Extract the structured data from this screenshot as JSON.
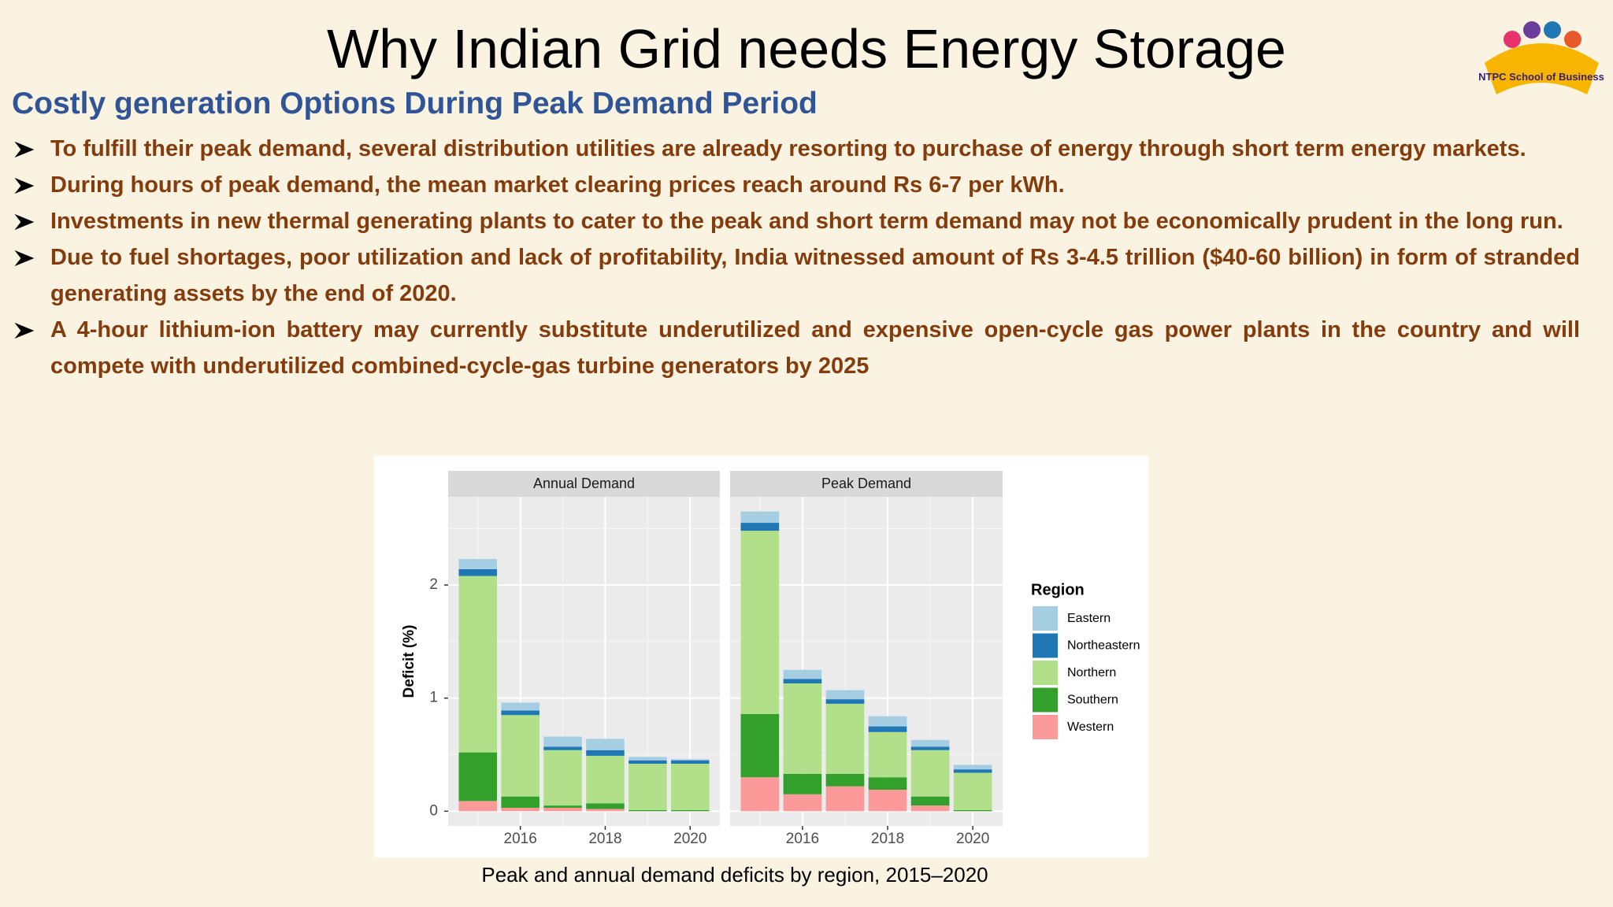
{
  "title": "Why Indian Grid needs Energy Storage",
  "logo_text": "NTPC School of Business",
  "subtitle": "Costly generation Options During Peak Demand Period",
  "bullets": [
    "To fulfill their peak demand, several distribution utilities are already resorting to purchase of energy through short term energy markets.",
    "During hours of peak demand, the mean market clearing prices reach around Rs 6-7 per kWh.",
    "Investments in new thermal generating plants to cater to the peak and short term demand may not be economically prudent in the long run.",
    "Due to fuel shortages, poor utilization and lack of profitability, India witnessed amount of Rs 3-4.5 trillion ($40-60 billion) in form of stranded generating assets by the end of 2020.",
    "A 4-hour lithium-ion battery may currently substitute underutilized and expensive open-cycle gas power plants in the country and will compete with underutilized combined-cycle-gas turbine generators by 2025"
  ],
  "chart_data": {
    "type": "bar",
    "stacked": true,
    "y_label": "Deficit (%)",
    "x": [
      2015,
      2016,
      2017,
      2018,
      2019,
      2020
    ],
    "xlim": [
      2014.3,
      2020.7
    ],
    "xticks": [
      2016,
      2018,
      2020
    ],
    "minor_xticks": [
      2015,
      2017,
      2019
    ],
    "ylim": [
      -0.13,
      2.78
    ],
    "yticks": [
      0,
      1,
      2
    ],
    "minor_yticks": [
      0.5,
      1.5,
      2.5
    ],
    "grid": true,
    "legend_title": "Region",
    "legend": "right",
    "series": [
      {
        "name": "Eastern",
        "color": "#a6cee3"
      },
      {
        "name": "Northeastern",
        "color": "#1f78b4"
      },
      {
        "name": "Northern",
        "color": "#b2df8a"
      },
      {
        "name": "Southern",
        "color": "#33a02c"
      },
      {
        "name": "Western",
        "color": "#fb9a99"
      }
    ],
    "panels": [
      {
        "title": "Annual Demand",
        "values": [
          [
            0.09,
            0.07,
            0.09,
            0.1,
            0.03,
            0.01
          ],
          [
            0.06,
            0.04,
            0.03,
            0.05,
            0.03,
            0.03
          ],
          [
            1.56,
            0.72,
            0.49,
            0.42,
            0.41,
            0.41
          ],
          [
            0.43,
            0.1,
            0.02,
            0.05,
            0.01,
            0.01
          ],
          [
            0.09,
            0.03,
            0.03,
            0.02,
            0,
            0
          ]
        ]
      },
      {
        "title": "Peak Demand",
        "values": [
          [
            0.1,
            0.08,
            0.08,
            0.09,
            0.06,
            0.04
          ],
          [
            0.07,
            0.04,
            0.04,
            0.05,
            0.03,
            0.03
          ],
          [
            1.62,
            0.8,
            0.62,
            0.4,
            0.41,
            0.33
          ],
          [
            0.56,
            0.18,
            0.11,
            0.11,
            0.08,
            0.01
          ],
          [
            0.3,
            0.15,
            0.22,
            0.19,
            0.05,
            0
          ]
        ]
      }
    ]
  },
  "caption": "Peak and annual demand deficits by region, 2015–2020"
}
